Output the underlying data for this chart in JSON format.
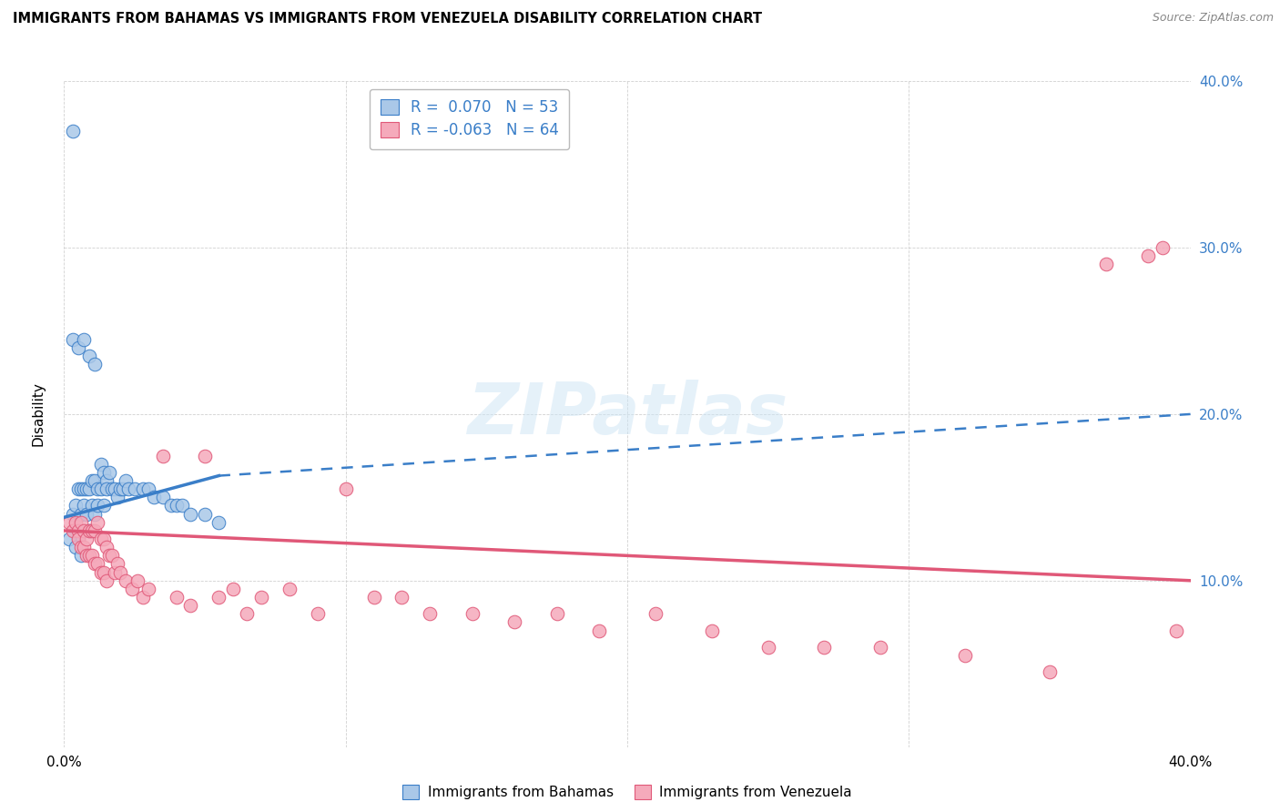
{
  "title": "IMMIGRANTS FROM BAHAMAS VS IMMIGRANTS FROM VENEZUELA DISABILITY CORRELATION CHART",
  "source": "Source: ZipAtlas.com",
  "ylabel": "Disability",
  "xlim": [
    0.0,
    0.4
  ],
  "ylim": [
    0.0,
    0.4
  ],
  "xticks": [
    0.0,
    0.1,
    0.2,
    0.3,
    0.4
  ],
  "yticks": [
    0.1,
    0.2,
    0.3,
    0.4
  ],
  "ytick_labels_left": [
    "",
    "",
    "",
    ""
  ],
  "ytick_labels_right": [
    "10.0%",
    "20.0%",
    "30.0%",
    "40.0%"
  ],
  "xtick_labels": [
    "0.0%",
    "",
    "",
    "",
    "40.0%"
  ],
  "legend_r1": "0.070",
  "legend_n1": "53",
  "legend_r2": "-0.063",
  "legend_n2": "64",
  "color_bahamas": "#aac8e8",
  "color_venezuela": "#f5aabb",
  "color_bahamas_line": "#3a7ec8",
  "color_venezuela_line": "#e05878",
  "color_r_value": "#3a7ec8",
  "watermark": "ZIPatlas",
  "bahamas_x": [
    0.003,
    0.003,
    0.004,
    0.004,
    0.005,
    0.005,
    0.006,
    0.006,
    0.007,
    0.007,
    0.008,
    0.008,
    0.009,
    0.009,
    0.01,
    0.01,
    0.011,
    0.011,
    0.012,
    0.012,
    0.013,
    0.013,
    0.014,
    0.014,
    0.015,
    0.015,
    0.016,
    0.017,
    0.018,
    0.019,
    0.02,
    0.021,
    0.022,
    0.023,
    0.025,
    0.028,
    0.03,
    0.032,
    0.035,
    0.038,
    0.04,
    0.042,
    0.045,
    0.05,
    0.055,
    0.003,
    0.005,
    0.007,
    0.009,
    0.011,
    0.002,
    0.004,
    0.006
  ],
  "bahamas_y": [
    0.37,
    0.14,
    0.145,
    0.13,
    0.155,
    0.125,
    0.155,
    0.14,
    0.155,
    0.145,
    0.155,
    0.14,
    0.155,
    0.13,
    0.16,
    0.145,
    0.16,
    0.14,
    0.155,
    0.145,
    0.17,
    0.155,
    0.165,
    0.145,
    0.16,
    0.155,
    0.165,
    0.155,
    0.155,
    0.15,
    0.155,
    0.155,
    0.16,
    0.155,
    0.155,
    0.155,
    0.155,
    0.15,
    0.15,
    0.145,
    0.145,
    0.145,
    0.14,
    0.14,
    0.135,
    0.245,
    0.24,
    0.245,
    0.235,
    0.23,
    0.125,
    0.12,
    0.115
  ],
  "venezuela_x": [
    0.002,
    0.003,
    0.004,
    0.005,
    0.005,
    0.006,
    0.006,
    0.007,
    0.007,
    0.008,
    0.008,
    0.009,
    0.009,
    0.01,
    0.01,
    0.011,
    0.011,
    0.012,
    0.012,
    0.013,
    0.013,
    0.014,
    0.014,
    0.015,
    0.015,
    0.016,
    0.017,
    0.018,
    0.019,
    0.02,
    0.022,
    0.024,
    0.026,
    0.028,
    0.03,
    0.035,
    0.04,
    0.045,
    0.05,
    0.055,
    0.06,
    0.065,
    0.07,
    0.08,
    0.09,
    0.1,
    0.11,
    0.12,
    0.13,
    0.145,
    0.16,
    0.175,
    0.19,
    0.21,
    0.23,
    0.25,
    0.27,
    0.29,
    0.32,
    0.35,
    0.37,
    0.385,
    0.39,
    0.395
  ],
  "venezuela_y": [
    0.135,
    0.13,
    0.135,
    0.13,
    0.125,
    0.135,
    0.12,
    0.13,
    0.12,
    0.125,
    0.115,
    0.13,
    0.115,
    0.13,
    0.115,
    0.13,
    0.11,
    0.135,
    0.11,
    0.125,
    0.105,
    0.125,
    0.105,
    0.12,
    0.1,
    0.115,
    0.115,
    0.105,
    0.11,
    0.105,
    0.1,
    0.095,
    0.1,
    0.09,
    0.095,
    0.175,
    0.09,
    0.085,
    0.175,
    0.09,
    0.095,
    0.08,
    0.09,
    0.095,
    0.08,
    0.155,
    0.09,
    0.09,
    0.08,
    0.08,
    0.075,
    0.08,
    0.07,
    0.08,
    0.07,
    0.06,
    0.06,
    0.06,
    0.055,
    0.045,
    0.29,
    0.295,
    0.3,
    0.07
  ],
  "bahamas_trend_x0": 0.0,
  "bahamas_trend_x_solid_end": 0.055,
  "bahamas_trend_x_dashed_end": 0.4,
  "bahamas_trend_y0": 0.138,
  "bahamas_trend_y_solid_end": 0.163,
  "bahamas_trend_y_dashed_end": 0.2,
  "venezuela_trend_x0": 0.0,
  "venezuela_trend_x1": 0.4,
  "venezuela_trend_y0": 0.13,
  "venezuela_trend_y1": 0.1
}
